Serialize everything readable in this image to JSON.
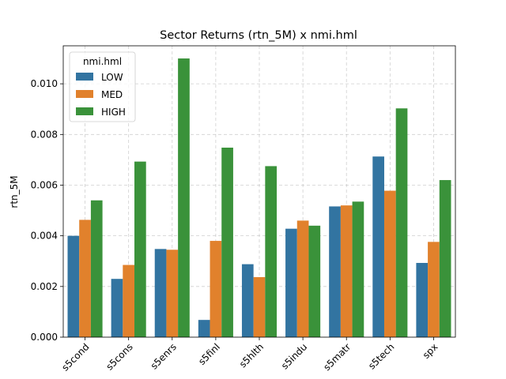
{
  "chart_data": {
    "type": "bar",
    "title": "Sector Returns (rtn_5M) x nmi.hml",
    "xlabel": "",
    "ylabel": "rtn_5M",
    "categories": [
      "s5cond",
      "s5cons",
      "s5enrs",
      "s5finl",
      "s5hlth",
      "s5indu",
      "s5matr",
      "s5tech",
      "spx"
    ],
    "ylim": [
      0,
      0.0115
    ],
    "yticks": [
      "0.000",
      "0.002",
      "0.004",
      "0.006",
      "0.008",
      "0.010"
    ],
    "grid": true,
    "legend": {
      "title": "nmi.hml",
      "position": "top-left"
    },
    "series": [
      {
        "name": "LOW",
        "color": "#3274a1",
        "values": [
          0.004,
          0.0023,
          0.00348,
          0.00068,
          0.00288,
          0.00428,
          0.00516,
          0.00713,
          0.00293
        ]
      },
      {
        "name": "MED",
        "color": "#e1812c",
        "values": [
          0.00463,
          0.00285,
          0.00345,
          0.0038,
          0.00237,
          0.0046,
          0.0052,
          0.00578,
          0.00376
        ]
      },
      {
        "name": "HIGH",
        "color": "#3a923a",
        "values": [
          0.0054,
          0.00693,
          0.011,
          0.00748,
          0.00675,
          0.0044,
          0.00535,
          0.00903,
          0.0062
        ]
      }
    ]
  }
}
